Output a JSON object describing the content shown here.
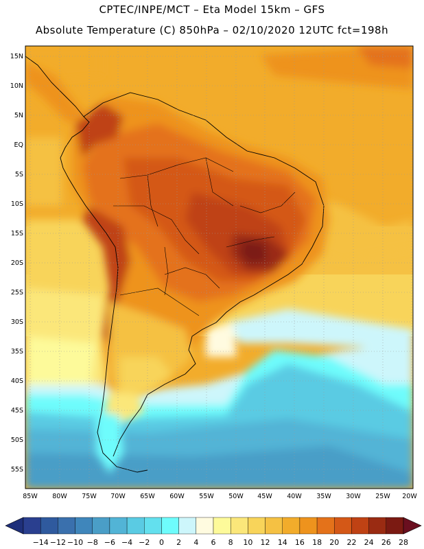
{
  "header": {
    "line1": "CPTEC/INPE/MCT –  Eta Model 15km – GFS",
    "line2": "Absolute Temperature (C) 850hPa – 02/10/2020 12UTC fct=198h"
  },
  "map": {
    "lat_labels": [
      "15N",
      "10N",
      "5N",
      "EQ",
      "5S",
      "10S",
      "15S",
      "20S",
      "25S",
      "30S",
      "35S",
      "40S",
      "45S",
      "50S",
      "55S"
    ],
    "lon_labels": [
      "85W",
      "80W",
      "75W",
      "70W",
      "65W",
      "60W",
      "55W",
      "50W",
      "45W",
      "40W",
      "35W",
      "30W",
      "25W",
      "20W"
    ],
    "region": "South America"
  },
  "colorbar": {
    "labels": [
      "-14",
      "-12",
      "-10",
      "-8",
      "-6",
      "-4",
      "-2",
      "0",
      "2",
      "4",
      "6",
      "8",
      "10",
      "12",
      "14",
      "16",
      "18",
      "20",
      "22",
      "24",
      "26",
      "28"
    ],
    "colors": [
      "#2a3f8f",
      "#2f5a9e",
      "#3a70ad",
      "#3f86bb",
      "#4a9ec7",
      "#52b4d6",
      "#5acbe3",
      "#63e0ee",
      "#6efcfc",
      "#cdf6fb",
      "#fffbe0",
      "#fdfa9a",
      "#fbe77a",
      "#f8d45a",
      "#f5c143",
      "#f2ac2b",
      "#ee931d",
      "#e4721a",
      "#d45817",
      "#bf4214",
      "#9a2b12",
      "#7b1a12"
    ],
    "under_color": "#1e2f7a",
    "over_color": "#6a0f1f"
  }
}
